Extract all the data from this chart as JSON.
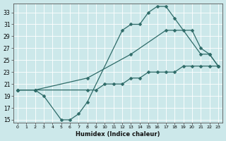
{
  "xlabel": "Humidex (Indice chaleur)",
  "bg_color": "#cce8ea",
  "line_color": "#2e6b68",
  "grid_color": "#b0d8da",
  "xlim": [
    -0.5,
    23.5
  ],
  "ylim": [
    14.5,
    34.5
  ],
  "xticks": [
    0,
    1,
    2,
    3,
    4,
    5,
    6,
    7,
    8,
    9,
    10,
    11,
    12,
    13,
    14,
    15,
    16,
    17,
    18,
    19,
    20,
    21,
    22,
    23
  ],
  "yticks": [
    15,
    17,
    19,
    21,
    23,
    25,
    27,
    29,
    31,
    33
  ],
  "line1_x": [
    0,
    2,
    3,
    5,
    6,
    7,
    8,
    12,
    13,
    14,
    15,
    16,
    17,
    18,
    21,
    22,
    23
  ],
  "line1_y": [
    20,
    20,
    19,
    15,
    15,
    16,
    18,
    30,
    31,
    31,
    33,
    34,
    34,
    32,
    26,
    26,
    24
  ],
  "line2_x": [
    0,
    2,
    8,
    13,
    17,
    18,
    19,
    20,
    21,
    22,
    23
  ],
  "line2_y": [
    20,
    20,
    22,
    26,
    30,
    30,
    30,
    30,
    27,
    26,
    24
  ],
  "line3_x": [
    0,
    2,
    8,
    9,
    10,
    11,
    12,
    13,
    14,
    15,
    16,
    17,
    18,
    19,
    20,
    21,
    22,
    23
  ],
  "line3_y": [
    20,
    20,
    20,
    20,
    21,
    21,
    21,
    22,
    22,
    23,
    23,
    23,
    23,
    24,
    24,
    24,
    24,
    24
  ]
}
